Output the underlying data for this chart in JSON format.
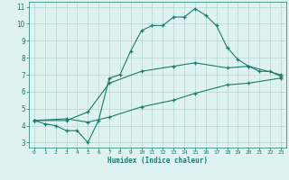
{
  "xlabel": "Humidex (Indice chaleur)",
  "xlim": [
    -0.5,
    23.5
  ],
  "ylim": [
    2.7,
    11.3
  ],
  "xticks": [
    0,
    1,
    2,
    3,
    4,
    5,
    6,
    7,
    8,
    9,
    10,
    11,
    12,
    13,
    14,
    15,
    16,
    17,
    18,
    19,
    20,
    21,
    22,
    23
  ],
  "yticks": [
    3,
    4,
    5,
    6,
    7,
    8,
    9,
    10,
    11
  ],
  "line_color": "#1a7a6e",
  "bg_color": "#dff2f2",
  "grid_color": "#c0d8d8",
  "curve1_x": [
    0,
    1,
    2,
    3,
    4,
    5,
    6,
    7,
    8,
    9,
    10,
    11,
    12,
    13,
    14,
    15,
    16,
    17,
    18,
    19,
    20,
    21,
    22,
    23
  ],
  "curve1_y": [
    4.3,
    4.1,
    4.0,
    3.7,
    3.7,
    3.0,
    4.3,
    6.8,
    7.0,
    8.4,
    9.6,
    9.9,
    9.9,
    10.4,
    10.4,
    10.9,
    10.5,
    9.9,
    8.6,
    7.9,
    7.5,
    7.2,
    7.2,
    6.9
  ],
  "curve2_x": [
    0,
    3,
    5,
    7,
    10,
    13,
    15,
    18,
    20,
    23
  ],
  "curve2_y": [
    4.3,
    4.3,
    4.8,
    6.5,
    7.2,
    7.5,
    7.7,
    7.4,
    7.5,
    7.0
  ],
  "curve3_x": [
    0,
    3,
    5,
    7,
    10,
    13,
    15,
    18,
    20,
    23
  ],
  "curve3_y": [
    4.3,
    4.4,
    4.2,
    4.5,
    5.1,
    5.5,
    5.9,
    6.4,
    6.5,
    6.8
  ]
}
